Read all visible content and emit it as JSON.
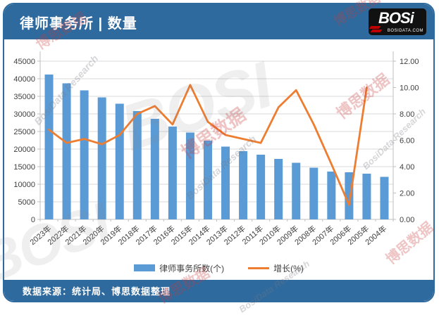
{
  "header": {
    "title": "律师事务所 | 数量",
    "logo": {
      "text": "BOSi",
      "subtext": "BOSIDATA.COM"
    }
  },
  "footer": {
    "source": "数据来源：统计局、博思数据整理"
  },
  "watermark": {
    "cn": "博思数据",
    "en": "BosiData Research",
    "logo": "BOSI"
  },
  "colors": {
    "header_blue": "#2E6A9E",
    "bar_blue": "#5B9BD5",
    "line_orange": "#ED7D31",
    "gridline": "#D9D9D9",
    "axis_line": "#BFBFBF",
    "tick_text": "#404040"
  },
  "chart_data": {
    "type": "bar",
    "title": "律师事务所 | 数量",
    "categories": [
      "2023年",
      "2022年",
      "2021年",
      "2020年",
      "2019年",
      "2018年",
      "2017年",
      "2016年",
      "2015年",
      "2014年",
      "2013年",
      "2012年",
      "2011年",
      "2010年",
      "2009年",
      "2008年",
      "2007年",
      "2006年",
      "2005年",
      "2004年"
    ],
    "series": [
      {
        "name": "律师事务所数(个)",
        "type": "bar",
        "axis": "left",
        "color": "#5B9BD5",
        "values": [
          41200,
          38700,
          36700,
          34700,
          32900,
          30800,
          28600,
          26400,
          24700,
          22400,
          20700,
          19400,
          18400,
          17200,
          16100,
          14700,
          13600,
          13400,
          13000,
          12100
        ]
      },
      {
        "name": "增长(%)",
        "type": "line",
        "axis": "right",
        "color": "#ED7D31",
        "values": [
          6.8,
          5.8,
          6.1,
          5.7,
          6.4,
          8.0,
          8.6,
          7.2,
          10.2,
          7.4,
          6.4,
          6.1,
          5.8,
          8.5,
          9.8,
          7.2,
          4.2,
          1.1,
          10.0,
          null
        ]
      }
    ],
    "left_axis": {
      "min": 0,
      "max": 45000,
      "step": 5000,
      "ticks": [
        "45000",
        "40000",
        "35000",
        "30000",
        "25000",
        "20000",
        "15000",
        "10000",
        "5000",
        "0"
      ]
    },
    "right_axis": {
      "min": 0,
      "max": 12,
      "step": 2,
      "ticks": [
        "12.00",
        "10.00",
        "8.00",
        "6.00",
        "4.00",
        "2.00",
        "0.00"
      ]
    },
    "grid": true,
    "legend_position": "bottom",
    "xlabel": "",
    "ylabel": ""
  }
}
